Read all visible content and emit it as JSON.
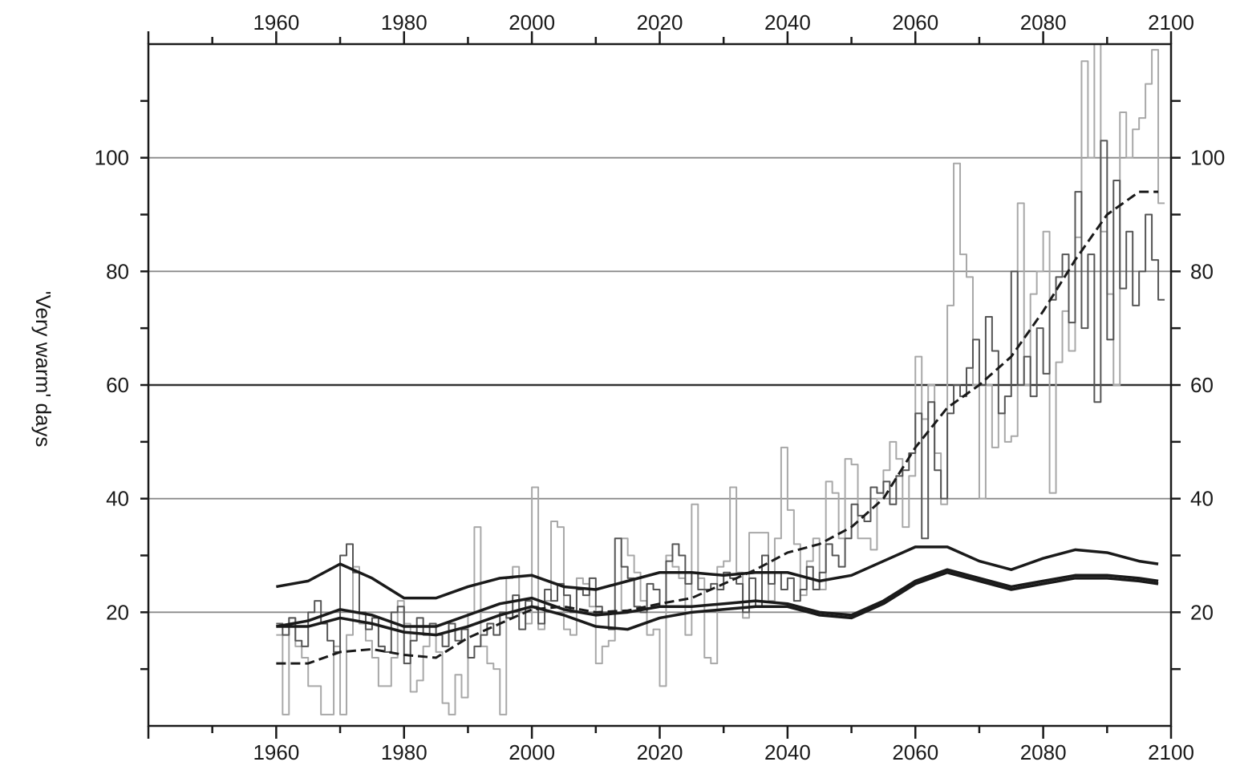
{
  "chart_data": {
    "type": "line",
    "title": "",
    "xlabel": "",
    "ylabel": "'Very warm' days",
    "xlim": [
      1940,
      2100
    ],
    "ylim": [
      0,
      120
    ],
    "x_ticks": [
      1960,
      1980,
      2000,
      2020,
      2040,
      2060,
      2080,
      2100
    ],
    "y_ticks": [
      20,
      40,
      60,
      80,
      100
    ],
    "y_minor_ticks": [
      10,
      30,
      50,
      70,
      90,
      110
    ],
    "grid": "horizontal",
    "gridlines_y": [
      20,
      40,
      60,
      80,
      100
    ],
    "series": [
      {
        "style": "step-light",
        "x": [
          1960,
          1961,
          1962,
          1963,
          1964,
          1965,
          1966,
          1967,
          1968,
          1969,
          1970,
          1971,
          1972,
          1973,
          1974,
          1975,
          1976,
          1977,
          1978,
          1979,
          1980,
          1981,
          1982,
          1983,
          1984,
          1985,
          1986,
          1987,
          1988,
          1989,
          1990,
          1991,
          1992,
          1993,
          1994,
          1995,
          1996,
          1997,
          1998,
          1999,
          2000,
          2001,
          2002,
          2003,
          2004,
          2005,
          2006,
          2007,
          2008,
          2009,
          2010,
          2011,
          2012,
          2013,
          2014,
          2015,
          2016,
          2017,
          2018,
          2019,
          2020,
          2021,
          2022,
          2023,
          2024,
          2025,
          2026,
          2027,
          2028,
          2029,
          2030,
          2031,
          2032,
          2033,
          2034,
          2035,
          2036,
          2037,
          2038,
          2039,
          2040,
          2041,
          2042,
          2043,
          2044,
          2045,
          2046,
          2047,
          2048,
          2049,
          2050,
          2051,
          2052,
          2053,
          2054,
          2055,
          2056,
          2057,
          2058,
          2059,
          2060,
          2061,
          2062,
          2063,
          2064,
          2065,
          2066,
          2067,
          2068,
          2069,
          2070,
          2071,
          2072,
          2073,
          2074,
          2075,
          2076,
          2077,
          2078,
          2079,
          2080,
          2081,
          2082,
          2083,
          2084,
          2085,
          2086,
          2087,
          2088,
          2089,
          2090,
          2091,
          2092,
          2093,
          2094,
          2095,
          2096,
          2097,
          2098
        ],
        "values": [
          16,
          2,
          19,
          14,
          12,
          7,
          7,
          2,
          2,
          14,
          2,
          16,
          28,
          18,
          15,
          12,
          7,
          7,
          12,
          22,
          18,
          6,
          8,
          14,
          16,
          13,
          4,
          2,
          9,
          5,
          20,
          35,
          14,
          11,
          10,
          2,
          26,
          28,
          20,
          18,
          42,
          17,
          22,
          36,
          35,
          17,
          16,
          26,
          25,
          21,
          11,
          14,
          15,
          20,
          33,
          30,
          27,
          22,
          16,
          17,
          7,
          30,
          28,
          26,
          16,
          39,
          26,
          12,
          11,
          28,
          29,
          42,
          27,
          19,
          34,
          34,
          34,
          22,
          33,
          49,
          38,
          32,
          23,
          29,
          33,
          24,
          43,
          41,
          33,
          47,
          46,
          33,
          33,
          31,
          40,
          45,
          50,
          47,
          35,
          44,
          65,
          54,
          60,
          48,
          39,
          74,
          99,
          83,
          79,
          60,
          40,
          60,
          49,
          55,
          50,
          51,
          92,
          60,
          76,
          80,
          87,
          41,
          64,
          73,
          66,
          86,
          117,
          100,
          120,
          87,
          76,
          60,
          108,
          100,
          105,
          107,
          113,
          119,
          92
        ]
      },
      {
        "style": "step-dark",
        "x": [
          1960,
          1961,
          1962,
          1963,
          1964,
          1965,
          1966,
          1967,
          1968,
          1969,
          1970,
          1971,
          1972,
          1973,
          1974,
          1975,
          1976,
          1977,
          1978,
          1979,
          1980,
          1981,
          1982,
          1983,
          1984,
          1985,
          1986,
          1987,
          1988,
          1989,
          1990,
          1991,
          1992,
          1993,
          1994,
          1995,
          1996,
          1997,
          1998,
          1999,
          2000,
          2001,
          2002,
          2003,
          2004,
          2005,
          2006,
          2007,
          2008,
          2009,
          2010,
          2011,
          2012,
          2013,
          2014,
          2015,
          2016,
          2017,
          2018,
          2019,
          2020,
          2021,
          2022,
          2023,
          2024,
          2025,
          2026,
          2027,
          2028,
          2029,
          2030,
          2031,
          2032,
          2033,
          2034,
          2035,
          2036,
          2037,
          2038,
          2039,
          2040,
          2041,
          2042,
          2043,
          2044,
          2045,
          2046,
          2047,
          2048,
          2049,
          2050,
          2051,
          2052,
          2053,
          2054,
          2055,
          2056,
          2057,
          2058,
          2059,
          2060,
          2061,
          2062,
          2063,
          2064,
          2065,
          2066,
          2067,
          2068,
          2069,
          2070,
          2071,
          2072,
          2073,
          2074,
          2075,
          2076,
          2077,
          2078,
          2079,
          2080,
          2081,
          2082,
          2083,
          2084,
          2085,
          2086,
          2087,
          2088,
          2089,
          2090,
          2091,
          2092,
          2093,
          2094,
          2095,
          2096,
          2097,
          2098
        ],
        "values": [
          18,
          16,
          19,
          15,
          14,
          20,
          22,
          18,
          15,
          13,
          30,
          32,
          27,
          20,
          17,
          19,
          14,
          13,
          20,
          21,
          11,
          15,
          19,
          16,
          18,
          16,
          14,
          18,
          15,
          17,
          12,
          14,
          16,
          18,
          16,
          20,
          19,
          23,
          17,
          22,
          21,
          18,
          24,
          22,
          25,
          23,
          20,
          24,
          23,
          26,
          21,
          20,
          17,
          33,
          28,
          26,
          21,
          20,
          25,
          24,
          21,
          29,
          32,
          30,
          25,
          27,
          24,
          24,
          25,
          24,
          27,
          26,
          25,
          20,
          26,
          21,
          30,
          25,
          27,
          24,
          26,
          22,
          24,
          28,
          24,
          27,
          32,
          30,
          28,
          33,
          39,
          37,
          36,
          42,
          41,
          43,
          39,
          44,
          45,
          48,
          55,
          33,
          57,
          45,
          40,
          55,
          60,
          58,
          63,
          68,
          60,
          72,
          66,
          55,
          58,
          80,
          60,
          65,
          58,
          70,
          62,
          75,
          79,
          83,
          71,
          94,
          70,
          83,
          57,
          103,
          68,
          96,
          77,
          87,
          74,
          80,
          90,
          82,
          75
        ]
      },
      {
        "style": "dashed",
        "x": [
          1960,
          1965,
          1970,
          1975,
          1980,
          1985,
          1990,
          1995,
          2000,
          2005,
          2010,
          2015,
          2020,
          2025,
          2030,
          2035,
          2040,
          2045,
          2050,
          2055,
          2060,
          2065,
          2070,
          2075,
          2080,
          2085,
          2090,
          2095,
          2098
        ],
        "values": [
          11,
          11,
          13,
          13.5,
          12.5,
          12,
          15.5,
          18,
          20.5,
          21,
          20,
          20.3,
          21.5,
          22.5,
          25,
          27.5,
          30.5,
          32,
          35,
          40,
          49,
          56,
          60,
          65,
          73,
          82,
          90,
          94,
          94
        ]
      },
      {
        "style": "solid",
        "x": [
          1960,
          1965,
          1970,
          1975,
          1980,
          1985,
          1990,
          1995,
          2000,
          2005,
          2010,
          2015,
          2020,
          2025,
          2030,
          2035,
          2040,
          2045,
          2050,
          2055,
          2060,
          2065,
          2070,
          2075,
          2080,
          2085,
          2090,
          2095,
          2098
        ],
        "values": [
          24.5,
          25.5,
          28.5,
          26,
          22.5,
          22.5,
          24.5,
          26,
          26.5,
          24.5,
          24,
          25.5,
          27,
          27,
          26.5,
          27,
          27,
          25.5,
          26.5,
          29,
          31.5,
          31.5,
          29,
          27.5,
          29.5,
          31,
          30.5,
          29,
          28.5
        ]
      },
      {
        "style": "solid",
        "x": [
          1960,
          1965,
          1970,
          1975,
          1980,
          1985,
          1990,
          1995,
          2000,
          2005,
          2010,
          2015,
          2020,
          2025,
          2030,
          2035,
          2040,
          2045,
          2050,
          2055,
          2060,
          2065,
          2070,
          2075,
          2080,
          2085,
          2090,
          2095,
          2098
        ],
        "values": [
          17.5,
          18.5,
          20.5,
          19.5,
          17.5,
          17.5,
          19.5,
          21.5,
          22.5,
          20.5,
          19.5,
          20,
          21,
          21,
          21.5,
          22,
          21.5,
          20,
          19.5,
          22,
          25.5,
          27.5,
          26,
          24.5,
          25.5,
          26.5,
          26.5,
          26,
          25.5
        ]
      },
      {
        "style": "solid",
        "x": [
          1960,
          1965,
          1970,
          1975,
          1980,
          1985,
          1990,
          1995,
          2000,
          2005,
          2010,
          2015,
          2020,
          2025,
          2030,
          2035,
          2040,
          2045,
          2050,
          2055,
          2060,
          2065,
          2070,
          2075,
          2080,
          2085,
          2090,
          2095,
          2098
        ],
        "values": [
          17.5,
          17.5,
          19,
          18,
          16.5,
          16,
          17.5,
          19.5,
          21,
          19.5,
          17.5,
          17,
          19,
          20,
          20.5,
          21,
          21,
          19.5,
          19,
          21.5,
          25,
          27,
          25.5,
          24,
          25,
          26,
          26,
          25.5,
          25
        ]
      }
    ]
  }
}
